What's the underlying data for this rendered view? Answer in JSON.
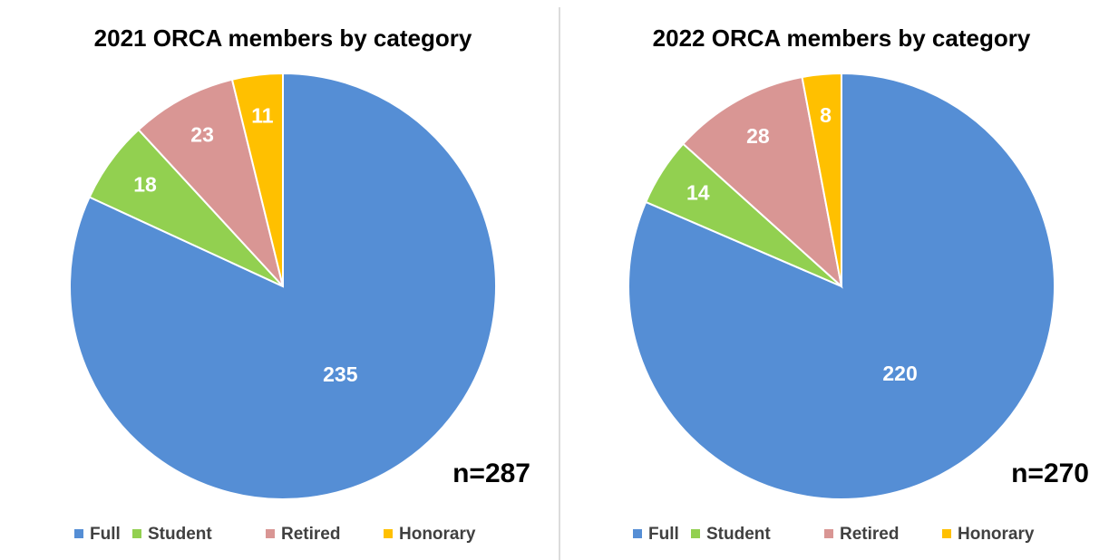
{
  "chart_data": [
    {
      "type": "pie",
      "title": "2021 ORCA members by category",
      "categories": [
        "Full",
        "Student",
        "Retired",
        "Honorary"
      ],
      "values": [
        235,
        18,
        23,
        11
      ],
      "colors": [
        "#558ed5",
        "#92d050",
        "#d99694",
        "#ffc000"
      ],
      "annotation": "n=287",
      "legend": "bottom"
    },
    {
      "type": "pie",
      "title": "2022 ORCA members by category",
      "categories": [
        "Full",
        "Student",
        "Retired",
        "Honorary"
      ],
      "values": [
        220,
        14,
        28,
        8
      ],
      "colors": [
        "#558ed5",
        "#92d050",
        "#d99694",
        "#ffc000"
      ],
      "annotation": "n=270",
      "legend": "bottom"
    }
  ]
}
